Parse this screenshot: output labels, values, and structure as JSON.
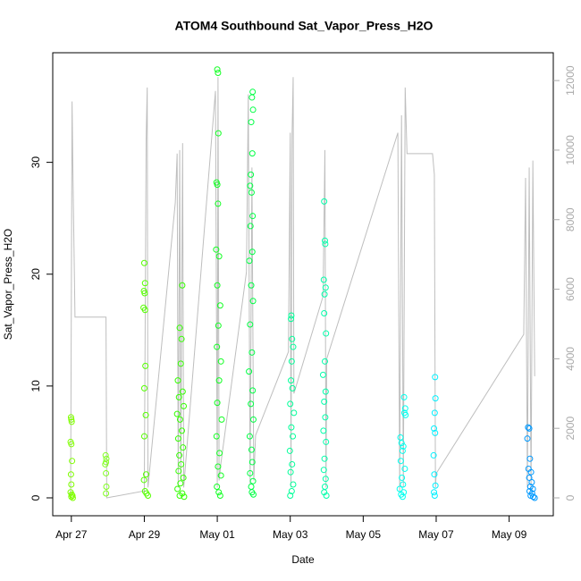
{
  "chart_data": {
    "type": "scatter",
    "title": "ATOM4 Southbound Sat_Vapor_Press_H2O",
    "x_label": "Date",
    "y_label": "Sat_Vapor_Press_H2O",
    "xlim": [
      26.49,
      40.21
    ],
    "xticks": [
      {
        "value": 27,
        "label": "Apr 27"
      },
      {
        "value": 29,
        "label": "Apr 29"
      },
      {
        "value": 31,
        "label": "May 01"
      },
      {
        "value": 33,
        "label": "May 03"
      },
      {
        "value": 35,
        "label": "May 05"
      },
      {
        "value": 37,
        "label": "May 07"
      },
      {
        "value": 39,
        "label": "May 09"
      }
    ],
    "ylim": [
      -1.6,
      39.8
    ],
    "yticks": [
      0,
      10,
      20,
      30
    ],
    "y2lim": [
      -514,
      12800
    ],
    "y2ticks": [
      0,
      2000,
      4000,
      6000,
      8000,
      10000,
      12000
    ],
    "series": [
      {
        "type": "line",
        "axis": "y2",
        "color": "#bebebe",
        "x": [
          26.98,
          27.02,
          27.04,
          27.1,
          27.95,
          27.97,
          29.0,
          29.05,
          29.08,
          29.1,
          29.85,
          29.9,
          29.93,
          29.97,
          30.0,
          30.05,
          30.08,
          30.95,
          31.0,
          31.02,
          31.05,
          31.1,
          31.8,
          31.85,
          31.9,
          31.95,
          32.0,
          32.05,
          32.95,
          33.0,
          33.02,
          33.05,
          33.08,
          33.1,
          33.9,
          33.95,
          33.98,
          34.0,
          35.95,
          36.0,
          36.05,
          36.1,
          36.15,
          36.2,
          36.9,
          36.95,
          36.98,
          37.0,
          39.4,
          39.45,
          39.5,
          39.55,
          39.6,
          39.65,
          39.7
        ],
        "values": [
          0,
          11400,
          9600,
          5200,
          5200,
          0,
          200,
          10300,
          11800,
          300,
          8500,
          9900,
          300,
          10000,
          500,
          10200,
          300,
          11700,
          300,
          12100,
          500,
          1000,
          6500,
          11600,
          400,
          9500,
          500,
          1800,
          4200,
          10500,
          300,
          10400,
          12100,
          3000,
          5800,
          10000,
          300,
          4000,
          10500,
          200,
          11000,
          300,
          11800,
          9900,
          9900,
          9300,
          300,
          700,
          4700,
          9200,
          300,
          9500,
          200,
          9700,
          3500
        ]
      },
      {
        "color": "#7fff00",
        "x": [
          26.99,
          27.0,
          27.01,
          26.98,
          27.0,
          27.02,
          26.99,
          27.0,
          26.98,
          27.01,
          27.03,
          27.0,
          27.04
        ],
        "values": [
          7.2,
          7.0,
          6.8,
          5,
          4.8,
          3.3,
          2.1,
          1.2,
          0.5,
          0.3,
          0.2,
          0.1,
          0
        ]
      },
      {
        "color": "#80ff20",
        "x": [
          27.94,
          27.96,
          27.95,
          27.93,
          27.95,
          27.96,
          27.95
        ],
        "values": [
          3.8,
          3.5,
          3.2,
          3.0,
          2.2,
          1.0,
          0.4
        ]
      },
      {
        "color": "#55ff00",
        "x": [
          29.0,
          29.02,
          28.99,
          29.01,
          28.98,
          29.02,
          29.03,
          29.0,
          29.04,
          29.0,
          29.05,
          28.99,
          29.02,
          29.06,
          29.1
        ],
        "values": [
          21,
          19.2,
          18.5,
          18.3,
          17,
          16.8,
          11.8,
          9.8,
          7.4,
          5.5,
          2.1,
          1.6,
          0.6,
          0.4,
          0.2
        ]
      },
      {
        "color": "#33ff00",
        "x": [
          30.04,
          29.97,
          30.02,
          30.0,
          29.92,
          30.05,
          29.95,
          30.08,
          29.9,
          29.98,
          30.03,
          29.93,
          30.06,
          29.96,
          30.01,
          29.94,
          30.07,
          29.99,
          29.91,
          30.04,
          29.97,
          30.09
        ],
        "values": [
          19,
          15.2,
          14.2,
          12,
          10.5,
          9.5,
          9,
          8.2,
          7.5,
          7,
          6,
          5.3,
          4.5,
          3.8,
          3,
          2.4,
          1.8,
          1.3,
          0.8,
          0.4,
          0.2,
          0.1
        ]
      },
      {
        "color": "#11ff22",
        "x": [
          31.0,
          31.02,
          31.03,
          30.98,
          31.0,
          31.02,
          30.97,
          31.05,
          31.0,
          31.08,
          31.03,
          30.99,
          31.1,
          31.05,
          31.0,
          31.12,
          30.98,
          31.06,
          31.02,
          31.1,
          30.99,
          31.04,
          31.08
        ],
        "values": [
          38.3,
          38,
          32.6,
          28.2,
          28,
          26.3,
          22.2,
          21.6,
          19,
          17.2,
          15.4,
          13.5,
          12.2,
          10.5,
          8.5,
          7,
          5.5,
          4,
          2.8,
          2,
          1,
          0.5,
          0.2
        ]
      },
      {
        "color": "#00ff44",
        "x": [
          31.97,
          31.95,
          31.98,
          31.93,
          31.96,
          31.92,
          31.9,
          31.94,
          31.97,
          31.91,
          31.96,
          31.88,
          31.93,
          31.98,
          31.9,
          31.95,
          31.87,
          31.97,
          31.92,
          31.99,
          31.89,
          31.94,
          31.96,
          31.9,
          31.98,
          31.93,
          31.95,
          31.99
        ],
        "values": [
          36.3,
          35.8,
          34.7,
          33.6,
          30.8,
          28.9,
          27.9,
          27.3,
          25.2,
          24.3,
          22,
          21.2,
          19,
          17.6,
          15.5,
          13,
          11.3,
          9.6,
          8.4,
          7,
          5.5,
          4.3,
          3.2,
          2.2,
          1.5,
          1,
          0.5,
          0.3
        ]
      },
      {
        "color": "#00ff99",
        "x": [
          33.03,
          33.02,
          33.05,
          33.08,
          33.04,
          33.02,
          33.06,
          33.0,
          33.1,
          33.03,
          33.07,
          32.99,
          33.05,
          33.01,
          33.08,
          33.04,
          33.0
        ],
        "values": [
          16.3,
          16,
          14.2,
          13.5,
          12.2,
          10.5,
          9.8,
          8.4,
          7.6,
          6.3,
          5.5,
          4.2,
          3,
          2.3,
          1.2,
          0.6,
          0.2
        ]
      },
      {
        "color": "#00ffaa",
        "x": [
          33.93,
          33.95,
          33.96,
          33.92,
          33.97,
          33.94,
          33.93,
          33.98,
          33.95,
          33.9,
          33.97,
          33.93,
          33.96,
          33.91,
          33.98,
          33.94,
          33.92,
          33.97,
          33.95,
          33.93,
          33.99
        ],
        "values": [
          26.5,
          23,
          22.7,
          19.5,
          18.8,
          18.2,
          16.5,
          14.7,
          12.2,
          11,
          9.5,
          8.6,
          7.2,
          6,
          5,
          3.5,
          2.5,
          1.7,
          1,
          0.5,
          0.2
        ]
      },
      {
        "color": "#00ffee",
        "x": [
          36.12,
          36.15,
          36.13,
          36.16,
          36.02,
          36.05,
          36.1,
          36.08,
          36.03,
          36.14,
          36.06,
          36.09,
          36.0,
          36.11,
          36.04,
          36.08
        ],
        "values": [
          9,
          8,
          7.6,
          7.4,
          5.4,
          4.9,
          4.6,
          4.2,
          3.3,
          2.6,
          1.8,
          1.2,
          0.8,
          0.5,
          0.3,
          0.1
        ]
      },
      {
        "color": "#00f0ff",
        "x": [
          36.97,
          36.98,
          36.96,
          36.94,
          36.97,
          36.93,
          36.95,
          36.98,
          36.94,
          36.96
        ],
        "values": [
          10.8,
          8.9,
          7.6,
          6.2,
          5.8,
          3.8,
          2.1,
          1.1,
          0.5,
          0.2
        ]
      },
      {
        "color": "#0099ff",
        "x": [
          39.52,
          39.55,
          39.5,
          39.57,
          39.53,
          39.6,
          39.55,
          39.62,
          39.58,
          39.65,
          39.56,
          39.63,
          39.59,
          39.66,
          39.7
        ],
        "values": [
          6.3,
          6.2,
          5.3,
          3.5,
          2.6,
          2.3,
          1.8,
          1.4,
          1,
          0.8,
          0.6,
          0.4,
          0.2,
          0.1,
          0
        ]
      }
    ]
  }
}
